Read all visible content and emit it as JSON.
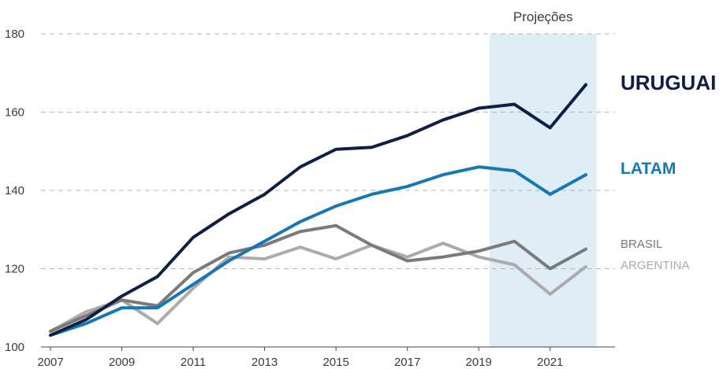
{
  "chart_data": {
    "type": "line",
    "x": [
      2007,
      2008,
      2009,
      2010,
      2011,
      2012,
      2013,
      2014,
      2015,
      2016,
      2017,
      2018,
      2019,
      2020,
      2021,
      2022
    ],
    "xticks": [
      "2007",
      "2009",
      "2011",
      "2013",
      "2015",
      "2017",
      "2019",
      "2021"
    ],
    "yticks": [
      "100",
      "120",
      "140",
      "160",
      "180"
    ],
    "ylim": [
      100,
      180
    ],
    "xlim": [
      2007,
      2022
    ],
    "grid": "horizontal dashed",
    "projection": {
      "label": "Projeções",
      "from": 2019.3,
      "to": 2022.3,
      "color": "#deedf6"
    },
    "series": [
      {
        "name": "URUGUAI",
        "color": "#0f1e45",
        "label_weight": "bold",
        "label_size": 26,
        "values": [
          103,
          107,
          113,
          118,
          128,
          134,
          139,
          146,
          150.5,
          151,
          154,
          158,
          161,
          162,
          156,
          167
        ]
      },
      {
        "name": "LATAM",
        "color": "#1577b3",
        "label_weight": "bold",
        "label_size": 21,
        "values": [
          103,
          106,
          110,
          110,
          116,
          122,
          127,
          132,
          136,
          139,
          141,
          144,
          146,
          145,
          139,
          144
        ]
      },
      {
        "name": "BRASIL",
        "color": "#7a7a7a",
        "label_weight": "normal",
        "label_size": 15,
        "values": [
          104,
          108,
          112,
          110.5,
          119,
          124,
          126,
          129.5,
          131,
          126,
          122,
          123,
          124.5,
          127,
          120,
          125
        ]
      },
      {
        "name": "ARGENTINA",
        "color": "#ababab",
        "label_weight": "normal",
        "label_size": 15,
        "values": [
          104,
          109,
          112,
          106,
          115,
          123,
          122.5,
          125.5,
          122.5,
          126,
          123,
          126.5,
          123,
          121,
          113.5,
          120.5
        ]
      }
    ]
  }
}
